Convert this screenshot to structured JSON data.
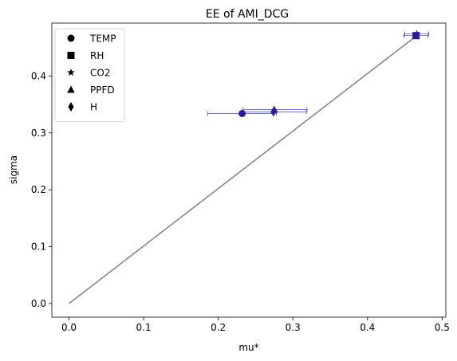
{
  "chart_data": {
    "type": "scatter",
    "title": "EE of AMI_DCG",
    "xlabel": "mu*",
    "ylabel": "sigma",
    "xlim": [
      -0.023,
      0.505
    ],
    "ylim": [
      -0.024,
      0.493
    ],
    "xticks": [
      0.0,
      0.1,
      0.2,
      0.3,
      0.4,
      0.5
    ],
    "xtick_labels": [
      "0.0",
      "0.1",
      "0.2",
      "0.3",
      "0.4",
      "0.5"
    ],
    "yticks": [
      0.0,
      0.1,
      0.2,
      0.3,
      0.4
    ],
    "ytick_labels": [
      "0.0",
      "0.1",
      "0.2",
      "0.3",
      "0.4"
    ],
    "grid": false,
    "legend_position": "top-left",
    "marker_color": "#2d1a9a",
    "errorbar_color": "#4040b0",
    "reference_line": {
      "x": [
        0.0,
        0.465
      ],
      "y": [
        0.0,
        0.47
      ],
      "color": "#808080"
    },
    "series": [
      {
        "name": "TEMP",
        "marker": "circle",
        "x": 0.232,
        "y": 0.334,
        "xerr_low": 0.186,
        "xerr_high": 0.278
      },
      {
        "name": "RH",
        "marker": "square",
        "x": 0.465,
        "y": 0.471,
        "xerr_low": 0.449,
        "xerr_high": 0.481
      },
      {
        "name": "CO2",
        "marker": "star",
        "x": 0.466,
        "y": 0.474,
        "xerr_low": 0.45,
        "xerr_high": 0.482
      },
      {
        "name": "PPFD",
        "marker": "triangle",
        "x": 0.275,
        "y": 0.341,
        "xerr_low": 0.233,
        "xerr_high": 0.319
      },
      {
        "name": "H",
        "marker": "diamond",
        "x": 0.274,
        "y": 0.337,
        "xerr_low": 0.231,
        "xerr_high": 0.318
      }
    ]
  }
}
